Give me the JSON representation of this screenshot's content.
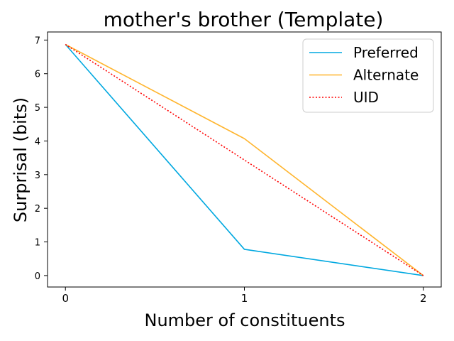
{
  "chart_data": {
    "type": "line",
    "title": "mother's brother (Template)",
    "xlabel": "Number of constituents",
    "ylabel": "Surprisal (bits)",
    "x": [
      0,
      1,
      2
    ],
    "xticks": [
      "0",
      "1",
      "2"
    ],
    "yticks": [
      "0",
      "1",
      "2",
      "3",
      "4",
      "5",
      "6",
      "7"
    ],
    "xlim": [
      -0.1,
      2.1
    ],
    "ylim": [
      -0.34,
      7.24
    ],
    "grid": false,
    "legend": "top-right",
    "series": [
      {
        "name": "Preferred",
        "values": [
          6.87,
          0.78,
          0.0
        ],
        "color": "#00a8e0",
        "dash": "solid"
      },
      {
        "name": "Alternate",
        "values": [
          6.87,
          4.07,
          0.0
        ],
        "color": "#ffb52e",
        "dash": "solid"
      },
      {
        "name": "UID",
        "values": [
          6.87,
          3.435,
          0.0
        ],
        "color": "#ff0000",
        "dash": "dotted"
      }
    ]
  }
}
